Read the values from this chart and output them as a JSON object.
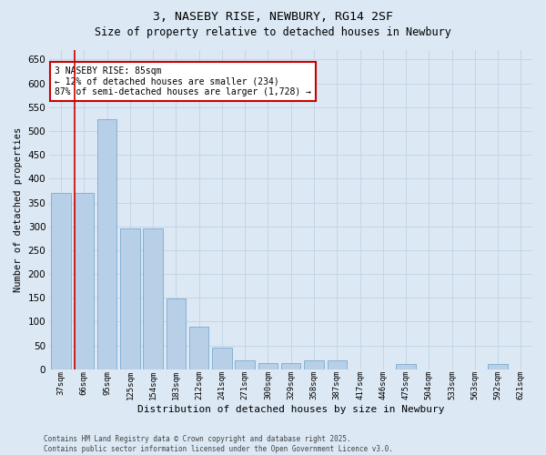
{
  "title_line1": "3, NASEBY RISE, NEWBURY, RG14 2SF",
  "title_line2": "Size of property relative to detached houses in Newbury",
  "xlabel": "Distribution of detached houses by size in Newbury",
  "ylabel": "Number of detached properties",
  "categories": [
    "37sqm",
    "66sqm",
    "95sqm",
    "125sqm",
    "154sqm",
    "183sqm",
    "212sqm",
    "241sqm",
    "271sqm",
    "300sqm",
    "329sqm",
    "358sqm",
    "387sqm",
    "417sqm",
    "446sqm",
    "475sqm",
    "504sqm",
    "533sqm",
    "563sqm",
    "592sqm",
    "621sqm"
  ],
  "values": [
    370,
    370,
    525,
    295,
    295,
    148,
    90,
    45,
    18,
    13,
    13,
    18,
    18,
    0,
    0,
    12,
    0,
    0,
    0,
    12,
    0
  ],
  "bar_color": "#b8cfe8",
  "bar_edge_color": "#7aaad0",
  "grid_color": "#c5d5e5",
  "background_color": "#dce8f4",
  "annotation_text": "3 NASEBY RISE: 85sqm\n← 12% of detached houses are smaller (234)\n87% of semi-detached houses are larger (1,728) →",
  "annotation_box_facecolor": "#ffffff",
  "annotation_box_edgecolor": "#cc0000",
  "vline_color": "#cc0000",
  "vline_pos": 1,
  "ylim": [
    0,
    670
  ],
  "yticks": [
    0,
    50,
    100,
    150,
    200,
    250,
    300,
    350,
    400,
    450,
    500,
    550,
    600,
    650
  ],
  "footer_line1": "Contains HM Land Registry data © Crown copyright and database right 2025.",
  "footer_line2": "Contains public sector information licensed under the Open Government Licence v3.0."
}
